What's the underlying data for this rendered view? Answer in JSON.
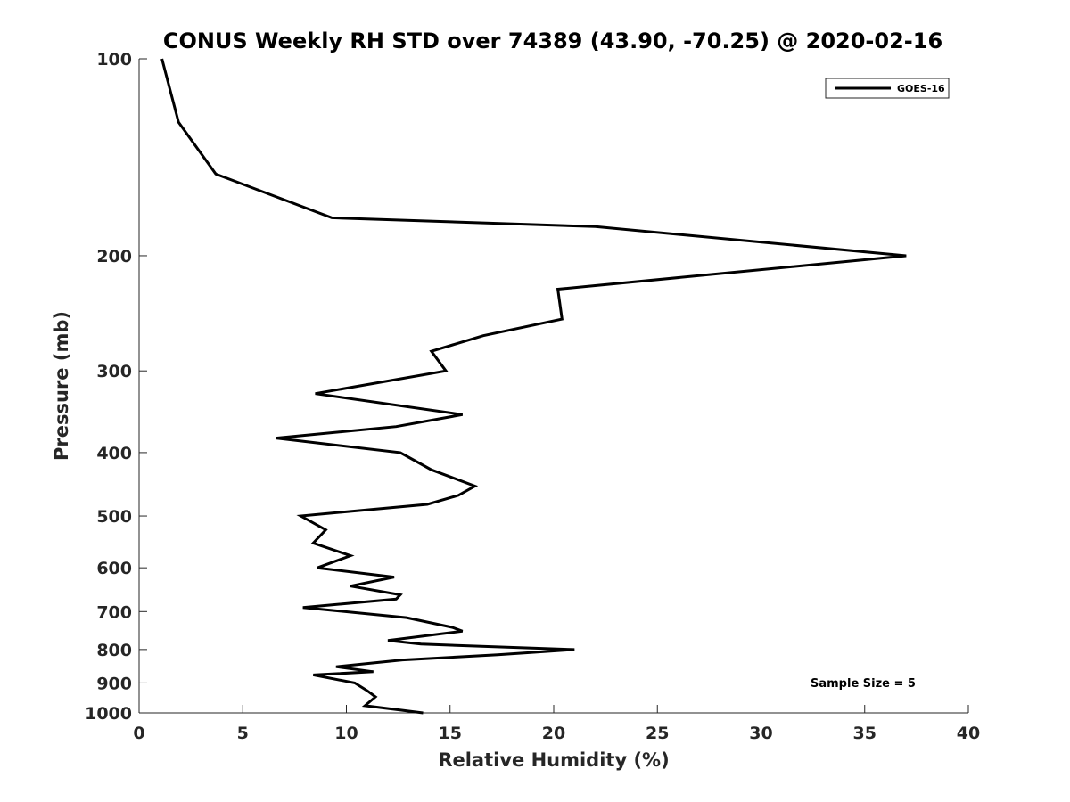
{
  "chart_data": {
    "type": "line",
    "title": "CONUS Weekly RH STD over 74389 (43.90, -70.25) @ 2020-02-16",
    "xlabel": "Relative Humidity (%)",
    "ylabel": "Pressure (mb)",
    "xlim": [
      0,
      40
    ],
    "ylim": [
      100,
      1000
    ],
    "yscale": "log",
    "y_reversed": true,
    "x_ticks": [
      0,
      5,
      10,
      15,
      20,
      25,
      30,
      35,
      40
    ],
    "x_tick_labels": [
      "0",
      "5",
      "10",
      "15",
      "20",
      "25",
      "30",
      "35",
      "40"
    ],
    "y_ticks": [
      100,
      200,
      300,
      400,
      500,
      600,
      700,
      800,
      900,
      1000
    ],
    "y_tick_labels": [
      "100",
      "200",
      "300",
      "400",
      "500",
      "600",
      "700",
      "800",
      "900",
      "1000"
    ],
    "grid": false,
    "legend_position": "top-right",
    "series": [
      {
        "name": "GOES-16",
        "color": "#000000",
        "points": [
          [
            1.1,
            100
          ],
          [
            1.9,
            125
          ],
          [
            3.7,
            150
          ],
          [
            9.3,
            175
          ],
          [
            22.0,
            180.5
          ],
          [
            37.0,
            200
          ],
          [
            20.2,
            225
          ],
          [
            20.4,
            250
          ],
          [
            16.6,
            265
          ],
          [
            14.1,
            280
          ],
          [
            14.8,
            300
          ],
          [
            8.5,
            325
          ],
          [
            15.6,
            350
          ],
          [
            12.4,
            365
          ],
          [
            6.6,
            380
          ],
          [
            12.6,
            400
          ],
          [
            14.1,
            425
          ],
          [
            16.2,
            450
          ],
          [
            15.4,
            465
          ],
          [
            13.9,
            480
          ],
          [
            7.8,
            500
          ],
          [
            9.0,
            525
          ],
          [
            8.4,
            550
          ],
          [
            10.2,
            575
          ],
          [
            8.6,
            600
          ],
          [
            12.3,
            620
          ],
          [
            10.2,
            640
          ],
          [
            12.6,
            660
          ],
          [
            12.4,
            670
          ],
          [
            7.9,
            690
          ],
          [
            12.9,
            715
          ],
          [
            15.1,
            740
          ],
          [
            15.6,
            750
          ],
          [
            12.0,
            775
          ],
          [
            13.6,
            785
          ],
          [
            21.0,
            800
          ],
          [
            17.3,
            815
          ],
          [
            12.7,
            830
          ],
          [
            9.5,
            850
          ],
          [
            11.3,
            865
          ],
          [
            8.4,
            875
          ],
          [
            10.4,
            900
          ],
          [
            11.0,
            925
          ],
          [
            11.4,
            945
          ],
          [
            10.9,
            975
          ],
          [
            13.7,
            1000
          ]
        ]
      }
    ],
    "annotations": [
      "Sample Size = 5"
    ]
  }
}
